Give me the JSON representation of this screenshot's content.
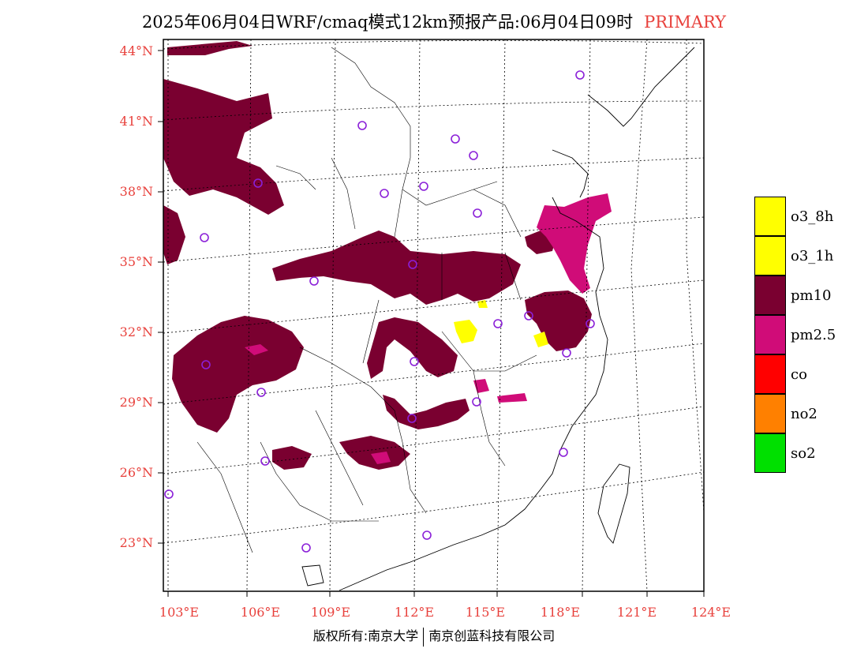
{
  "title": {
    "main": "2025年06月04日WRF/cmaq模式12km预报产品:06月04日09时",
    "tag": "PRIMARY"
  },
  "axes": {
    "lat_labels": [
      "44°N",
      "41°N",
      "38°N",
      "35°N",
      "32°N",
      "29°N",
      "26°N",
      "23°N"
    ],
    "lon_labels": [
      "103°E",
      "106°E",
      "109°E",
      "112°E",
      "115°E",
      "118°E",
      "121°E",
      "124°E"
    ]
  },
  "legend": [
    {
      "label": "o3_8h",
      "color": "#ffff00"
    },
    {
      "label": "o3_1h",
      "color": "#ffff00"
    },
    {
      "label": "pm10",
      "color": "#7a0030"
    },
    {
      "label": "pm2.5",
      "color": "#d00c78"
    },
    {
      "label": "co",
      "color": "#ff0000"
    },
    {
      "label": "no2",
      "color": "#ff8000"
    },
    {
      "label": "so2",
      "color": "#00e000"
    }
  ],
  "footer": {
    "left": "版权所有:南京大学",
    "right": "南京创蓝科技有限公司"
  },
  "colors": {
    "pm10": "#7a0030",
    "pm25": "#d00c78",
    "o3": "#ffff00",
    "axis_text": "#e8413c",
    "city_marker": "#8b20d8"
  }
}
